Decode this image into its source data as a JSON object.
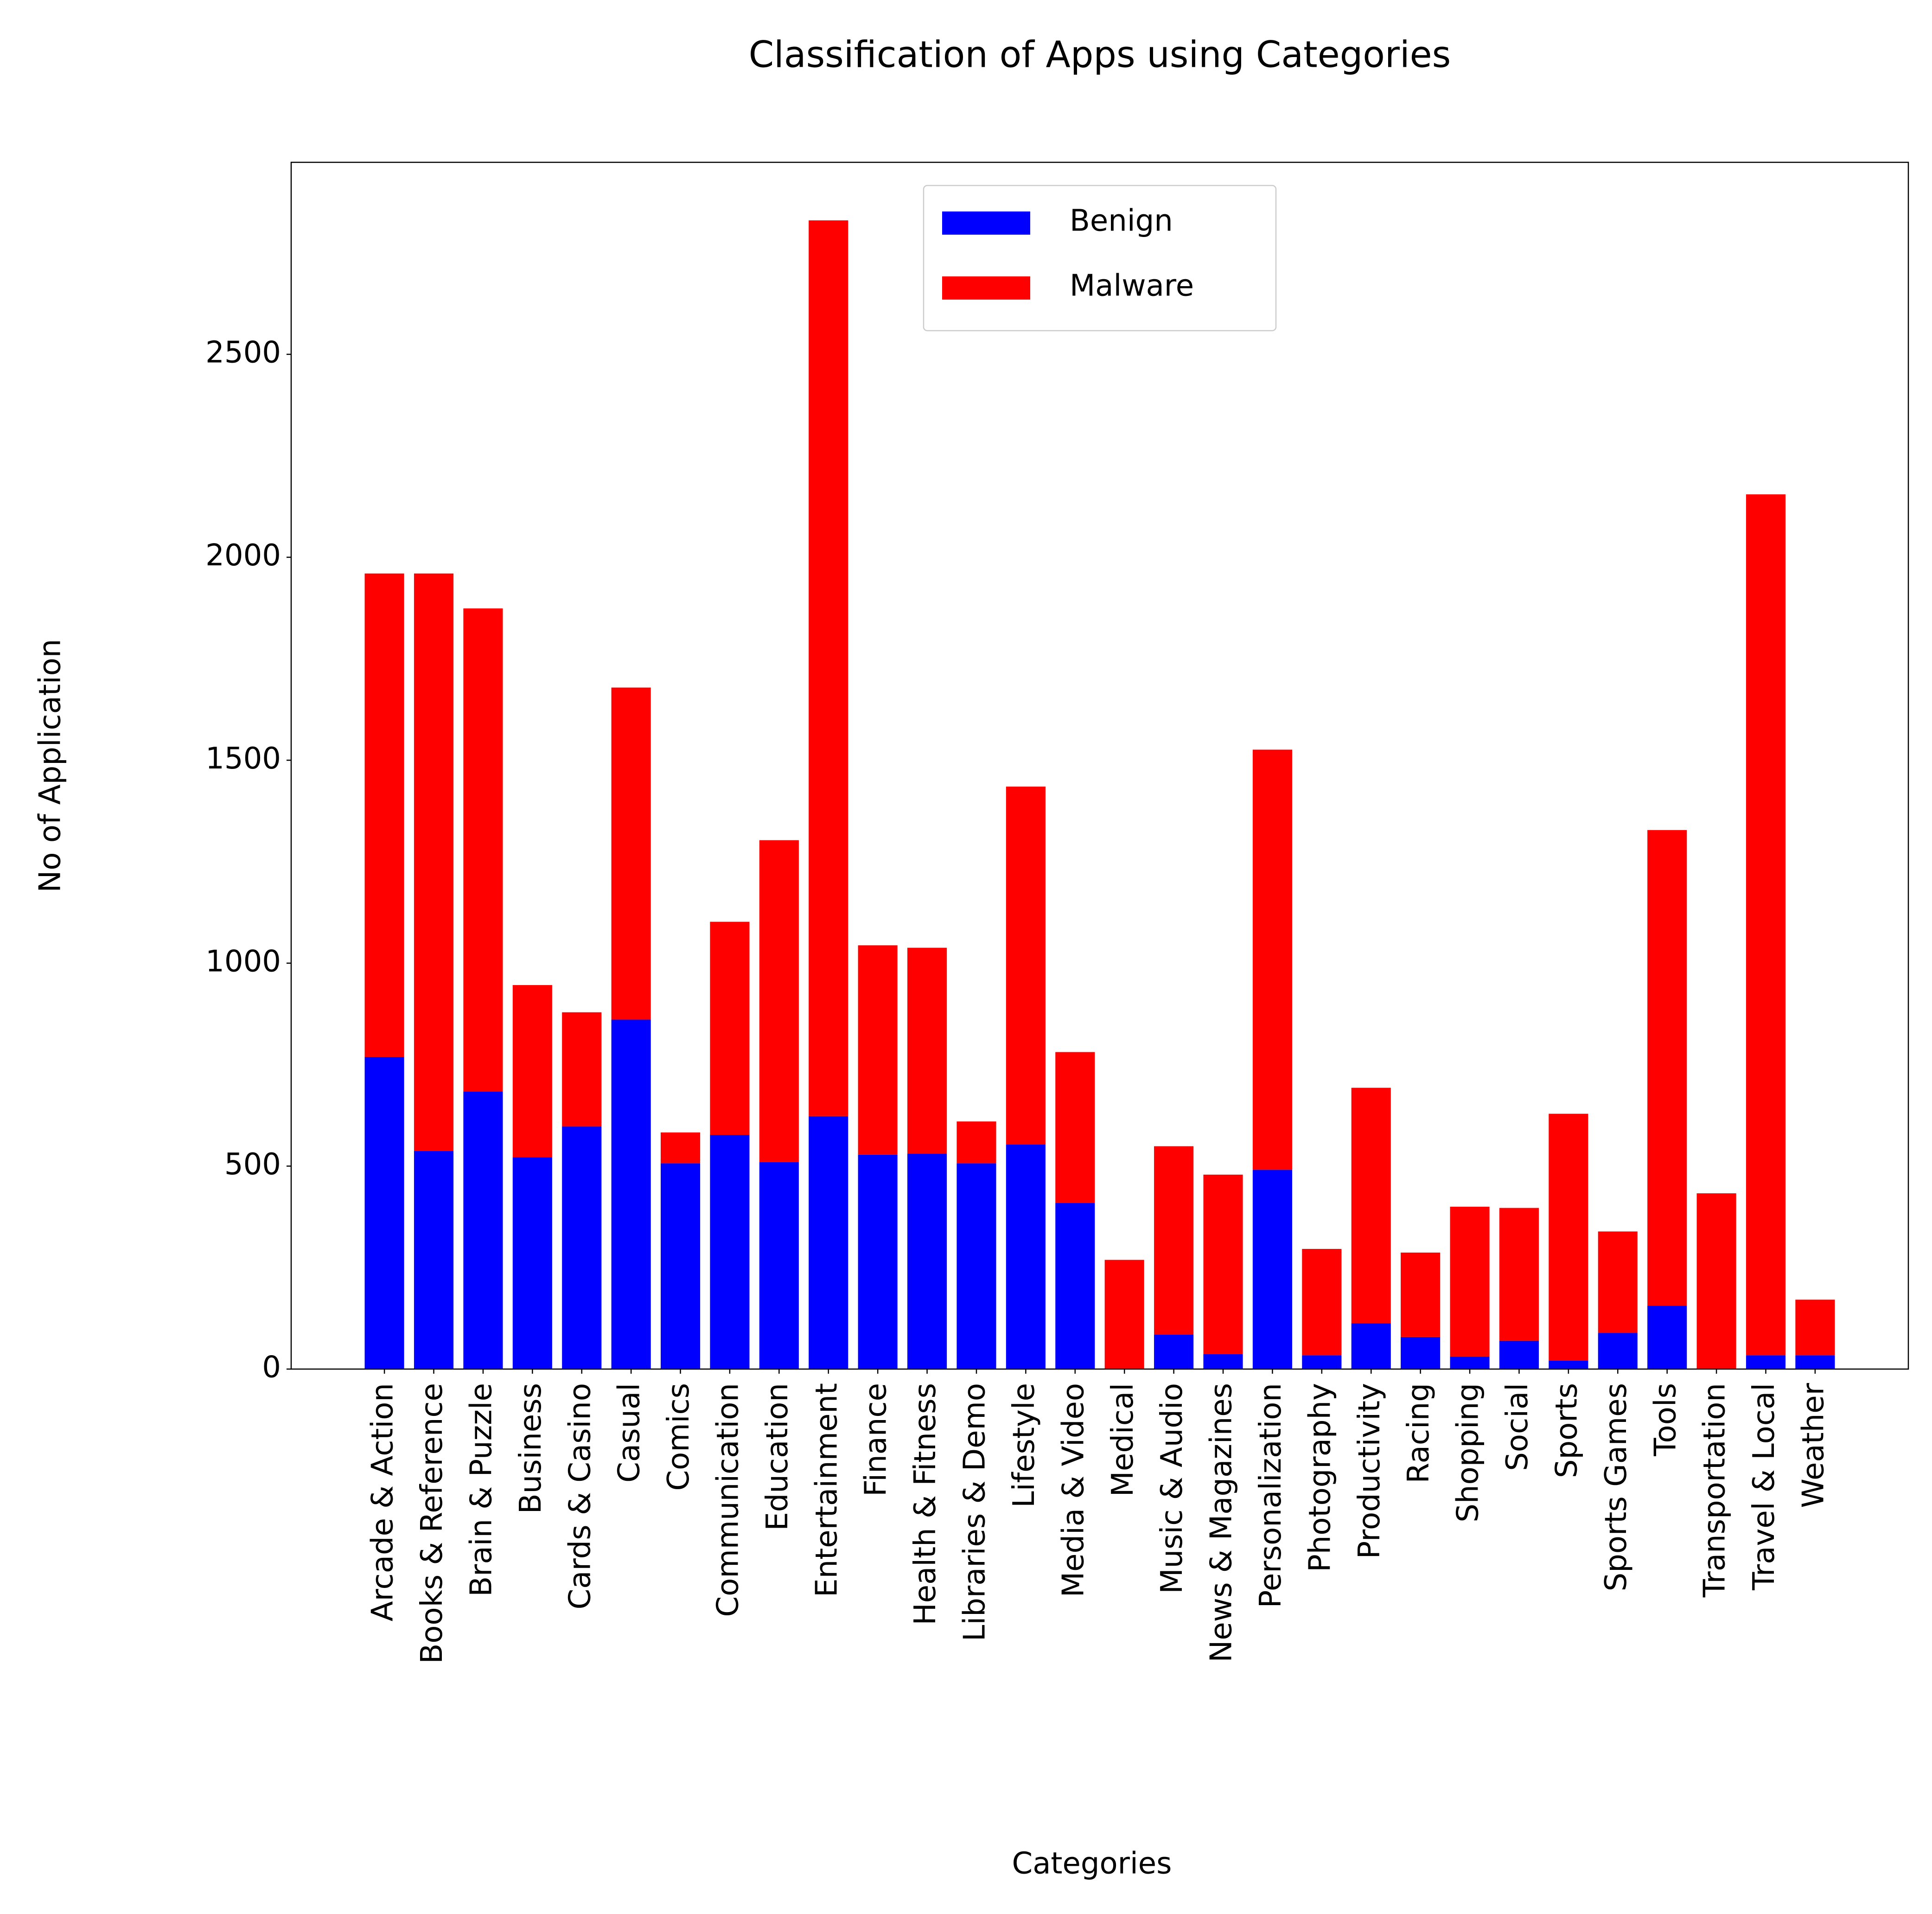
{
  "chart_data": {
    "type": "bar",
    "stacked": true,
    "title": "Classification of Apps using Categories",
    "x_label": "Categories",
    "y_label": "No of Application",
    "categories": [
      "Arcade & Action",
      "Books & Reference",
      "Brain & Puzzle",
      "Business",
      "Cards & Casino",
      "Casual",
      "Comics",
      "Communication",
      "Education",
      "Entertainment",
      "Finance",
      "Health & Fitness",
      "Libraries & Demo",
      "Lifestyle",
      "Media & Video",
      "Medical",
      "Music & Audio",
      "News & Magazines",
      "Personalization",
      "Photography",
      "Productivity",
      "Racing",
      "Shopping",
      "Social",
      "Sports",
      "Sports Games",
      "Tools",
      "Transportation",
      "Travel & Local",
      "Weather"
    ],
    "series": [
      {
        "name": "Benign",
        "color": "#0000ff",
        "values": [
          769,
          537,
          684,
          522,
          598,
          861,
          507,
          577,
          510,
          623,
          528,
          531,
          507,
          553,
          409,
          0,
          85,
          37,
          491,
          34,
          113,
          79,
          31,
          70,
          21,
          89,
          156,
          0,
          34,
          34
        ]
      },
      {
        "name": "Malware",
        "color": "#ff0000",
        "values": [
          1191,
          1423,
          1190,
          424,
          281,
          818,
          76,
          525,
          793,
          2207,
          516,
          507,
          103,
          882,
          372,
          269,
          464,
          442,
          1035,
          262,
          580,
          208,
          369,
          327,
          608,
          250,
          1172,
          433,
          2121,
          137
        ]
      }
    ],
    "ylim": [
      0,
      2973
    ],
    "yticks": [
      0,
      500,
      1000,
      1500,
      2000,
      2500
    ],
    "legend": "upper center",
    "grid": false
  }
}
